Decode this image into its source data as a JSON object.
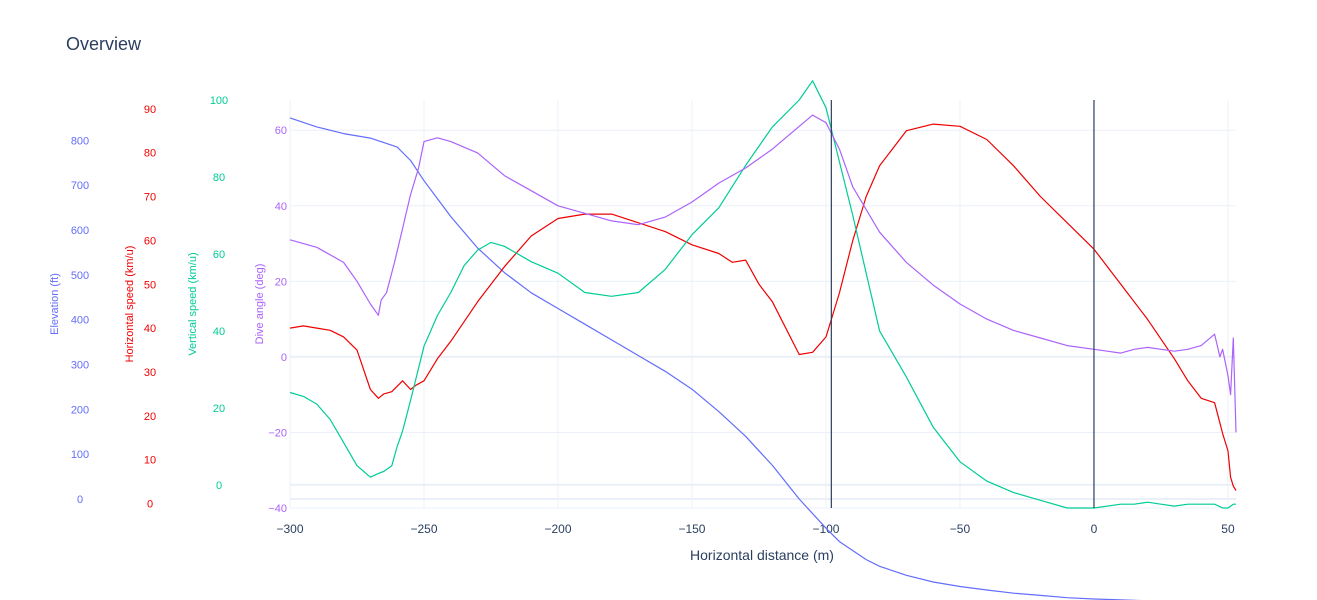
{
  "chart_data": {
    "type": "line",
    "title": "Overview",
    "xlabel": "Horizontal distance (m)",
    "xlim": [
      -300,
      53
    ],
    "xticks": [
      -300,
      -250,
      -200,
      -150,
      -100,
      -50,
      0,
      50
    ],
    "vertical_markers": [
      -98,
      0
    ],
    "colors": {
      "elevation": "#636efa",
      "horizontal_speed": "#ef0000",
      "vertical_speed": "#00cc96",
      "dive_angle": "#ab63fa",
      "marker": "#2a3f5f",
      "grid": "#ebf0f8"
    },
    "axes": [
      {
        "key": "elevation",
        "title": "Elevation (ft)",
        "range": [
          -20,
          890
        ],
        "ticks": [
          "0",
          "100",
          "200",
          "300",
          "400",
          "500",
          "600",
          "700",
          "800"
        ],
        "tick_values": [
          0,
          100,
          200,
          300,
          400,
          500,
          600,
          700,
          800
        ]
      },
      {
        "key": "horizontal_speed",
        "title": "Horizontal speed (km/u)",
        "range": [
          -1,
          92
        ],
        "ticks": [
          "0",
          "10",
          "20",
          "30",
          "40",
          "50",
          "60",
          "70",
          "80",
          "90"
        ],
        "tick_values": [
          0,
          10,
          20,
          30,
          40,
          50,
          60,
          70,
          80,
          90
        ]
      },
      {
        "key": "vertical_speed",
        "title": "Vertical speed (km/u)",
        "range": [
          -6,
          100
        ],
        "ticks": [
          "0",
          "20",
          "40",
          "60",
          "80",
          "100"
        ],
        "tick_values": [
          0,
          20,
          40,
          60,
          80,
          100
        ]
      },
      {
        "key": "dive_angle",
        "title": "Dive angle (deg)",
        "range": [
          -40,
          68
        ],
        "ticks": [
          "−40",
          "−20",
          "0",
          "20",
          "40",
          "60"
        ],
        "tick_values": [
          -40,
          -20,
          0,
          20,
          40,
          60
        ]
      }
    ],
    "series": [
      {
        "key": "elevation",
        "axis": "elevation",
        "x": [
          -300,
          -290,
          -280,
          -270,
          -260,
          -255,
          -250,
          -245,
          -240,
          -230,
          -220,
          -210,
          -200,
          -190,
          -180,
          -170,
          -160,
          -150,
          -140,
          -130,
          -120,
          -110,
          -100,
          -95,
          -90,
          -85,
          -80,
          -70,
          -60,
          -50,
          -40,
          -30,
          -20,
          -10,
          0,
          10,
          20,
          30,
          40,
          50,
          52,
          53
        ],
        "y": [
          850,
          830,
          815,
          805,
          785,
          755,
          710,
          670,
          630,
          560,
          505,
          460,
          425,
          390,
          355,
          320,
          285,
          245,
          195,
          140,
          75,
          0,
          -65,
          -95,
          -115,
          -135,
          -150,
          -170,
          -185,
          -195,
          -203,
          -210,
          -215,
          -220,
          -223,
          -225,
          -227,
          -228,
          -229,
          -230,
          -230,
          -230
        ]
      },
      {
        "key": "horizontal_speed",
        "name": "Horizontal speed",
        "axis": "horizontal_speed",
        "x": [
          -300,
          -295,
          -290,
          -285,
          -280,
          -275,
          -270,
          -267,
          -265,
          -262,
          -258,
          -255,
          -253,
          -250,
          -245,
          -240,
          -230,
          -220,
          -210,
          -200,
          -190,
          -180,
          -170,
          -160,
          -150,
          -140,
          -135,
          -130,
          -125,
          -120,
          -110,
          -105,
          -100,
          -95,
          -90,
          -85,
          -80,
          -70,
          -60,
          -50,
          -40,
          -30,
          -20,
          -10,
          0,
          10,
          20,
          30,
          35,
          40,
          45,
          48,
          50,
          51,
          52,
          53
        ],
        "y": [
          40,
          40.5,
          40,
          39.5,
          38,
          35,
          26,
          24,
          25,
          25.5,
          28,
          26,
          27,
          28,
          33,
          37,
          46,
          54,
          61,
          65,
          66,
          66,
          64,
          62,
          59,
          57,
          55,
          55.5,
          50,
          46,
          34,
          34.5,
          38,
          48,
          60,
          70,
          77,
          85,
          86.5,
          86,
          83,
          77,
          70,
          64,
          58,
          50,
          42,
          33,
          28,
          24,
          23,
          16,
          12,
          6,
          4,
          3
        ]
      },
      {
        "key": "vertical_speed",
        "axis": "vertical_speed",
        "x": [
          -300,
          -295,
          -290,
          -285,
          -280,
          -275,
          -270,
          -267,
          -265,
          -262,
          -260,
          -258,
          -255,
          -250,
          -245,
          -240,
          -235,
          -230,
          -225,
          -220,
          -215,
          -210,
          -200,
          -190,
          -180,
          -170,
          -160,
          -150,
          -140,
          -130,
          -120,
          -110,
          -105,
          -100,
          -95,
          -90,
          -85,
          -80,
          -70,
          -60,
          -50,
          -40,
          -30,
          -20,
          -10,
          0,
          10,
          15,
          20,
          25,
          30,
          35,
          40,
          45,
          48,
          50,
          52,
          53
        ],
        "y": [
          24,
          23,
          21,
          17,
          11,
          5,
          2,
          3,
          3.5,
          5,
          10,
          14,
          22,
          36,
          44,
          50,
          57,
          61,
          63,
          62,
          60,
          58,
          55,
          50,
          49,
          50,
          56,
          65,
          72,
          83,
          93,
          100,
          105,
          98,
          84,
          70,
          55,
          40,
          28,
          15,
          6,
          1,
          -2,
          -4,
          -6,
          -6,
          -5,
          -5,
          -4.5,
          -5,
          -5.5,
          -5,
          -5,
          -5,
          -6,
          -6,
          -5,
          -5
        ]
      },
      {
        "key": "dive_angle",
        "name": "Dive angle",
        "axis": "dive_angle",
        "x": [
          -300,
          -290,
          -280,
          -275,
          -270,
          -267,
          -266,
          -264,
          -261,
          -258,
          -255,
          -252,
          -250,
          -245,
          -240,
          -230,
          -220,
          -210,
          -200,
          -190,
          -180,
          -170,
          -160,
          -150,
          -140,
          -130,
          -120,
          -110,
          -105,
          -100,
          -95,
          -90,
          -80,
          -70,
          -60,
          -50,
          -40,
          -30,
          -20,
          -10,
          0,
          5,
          10,
          15,
          20,
          25,
          30,
          35,
          40,
          45,
          47,
          48,
          50,
          51,
          52,
          53
        ],
        "y": [
          31,
          29,
          25,
          20,
          14,
          11,
          15,
          17,
          25,
          34,
          43,
          50,
          57,
          58,
          57,
          54,
          48,
          44,
          40,
          38,
          36,
          35,
          37,
          41,
          46,
          50,
          55,
          61,
          64,
          62,
          55,
          45,
          33,
          25,
          19,
          14,
          10,
          7,
          5,
          3,
          2,
          1.5,
          1,
          2,
          2.5,
          2,
          1.5,
          2,
          3,
          6,
          0,
          2,
          -5,
          -10,
          5,
          -20
        ]
      }
    ]
  }
}
